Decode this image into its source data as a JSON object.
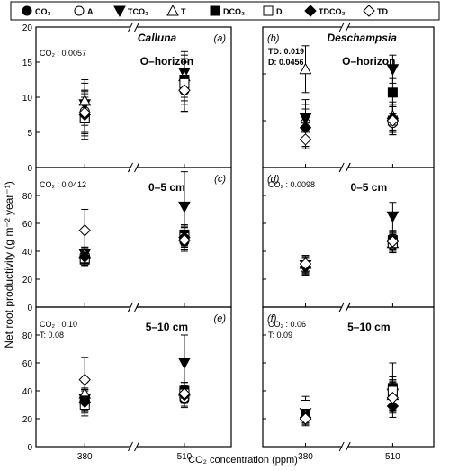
{
  "legend": [
    {
      "marker": "circle",
      "fill": "#000",
      "label": "CO₂"
    },
    {
      "marker": "circle",
      "fill": "#fff",
      "label": "A"
    },
    {
      "marker": "triangle-down",
      "fill": "#000",
      "label": "TCO₂"
    },
    {
      "marker": "triangle-up",
      "fill": "#fff",
      "label": "T"
    },
    {
      "marker": "square",
      "fill": "#000",
      "label": "DCO₂"
    },
    {
      "marker": "square",
      "fill": "#fff",
      "label": "D"
    },
    {
      "marker": "diamond",
      "fill": "#000",
      "label": "TDCO₂"
    },
    {
      "marker": "diamond",
      "fill": "#fff",
      "label": "TD"
    }
  ],
  "y_axis_label": "Net root productivity (g m⁻² year⁻¹)",
  "x_axis_label": "CO₂ concentration (ppm)",
  "chart_data": [
    {
      "type": "scatter",
      "panel_letter": "(a)",
      "title": "Calluna",
      "depth": "O–horizon",
      "stats": [
        "CO₂ : 0.0057"
      ],
      "ylim": [
        0,
        20
      ],
      "yticks": [
        0,
        5,
        10,
        15,
        20
      ],
      "categories": [
        "380",
        "510"
      ],
      "series": [
        {
          "name": "CO₂",
          "marker": "circle",
          "fill": "#000",
          "values": [
            8.0,
            11.0
          ],
          "err": [
            3.0,
            3.0
          ]
        },
        {
          "name": "A",
          "marker": "circle",
          "fill": "#fff",
          "values": [
            8.0,
            11.0
          ],
          "err": [
            3.0,
            3.0
          ]
        },
        {
          "name": "TCO₂",
          "marker": "triangle-down",
          "fill": "#000",
          "values": [
            9.0,
            13.5
          ],
          "err": [
            3.0,
            3.0
          ]
        },
        {
          "name": "T",
          "marker": "triangle-up",
          "fill": "#fff",
          "values": [
            9.5,
            13.0
          ],
          "err": [
            3.0,
            3.0
          ]
        },
        {
          "name": "DCO₂",
          "marker": "square",
          "fill": "#000",
          "values": [
            7.0,
            12.5
          ],
          "err": [
            3.0,
            3.0
          ]
        },
        {
          "name": "D",
          "marker": "square",
          "fill": "#fff",
          "values": [
            7.0,
            12.0
          ],
          "err": [
            3.0,
            3.0
          ]
        },
        {
          "name": "TDCO₂",
          "marker": "diamond",
          "fill": "#000",
          "values": [
            7.5,
            11.0
          ],
          "err": [
            3.0,
            3.0
          ]
        },
        {
          "name": "TD",
          "marker": "diamond",
          "fill": "#fff",
          "values": [
            7.8,
            11.0
          ],
          "err": [
            3.0,
            3.0
          ]
        }
      ]
    },
    {
      "type": "scatter",
      "panel_letter": "(b)",
      "title": "Deschampsia",
      "depth": "O–horizon",
      "stats": [
        "TD: 0.019",
        "D: 0.0456"
      ],
      "ylim": [
        0,
        30
      ],
      "yticks": [
        0,
        10,
        20,
        30
      ],
      "categories": [
        "380",
        "510"
      ],
      "series": [
        {
          "name": "CO₂",
          "marker": "circle",
          "fill": "#000",
          "values": [
            9.5,
            9.5
          ],
          "err": [
            4.0,
            2.0
          ]
        },
        {
          "name": "A",
          "marker": "circle",
          "fill": "#fff",
          "values": [
            9.5,
            9.5
          ],
          "err": [
            4.0,
            2.0
          ]
        },
        {
          "name": "TCO₂",
          "marker": "triangle-down",
          "fill": "#000",
          "values": [
            10.5,
            21.0
          ],
          "err": [
            4.0,
            3.0
          ]
        },
        {
          "name": "T",
          "marker": "triangle-up",
          "fill": "#fff",
          "values": [
            21.0,
            11.0
          ],
          "err": [
            5.0,
            3.0
          ]
        },
        {
          "name": "DCO₂",
          "marker": "square",
          "fill": "#000",
          "values": [
            8.5,
            16.0
          ],
          "err": [
            4.0,
            3.0
          ]
        },
        {
          "name": "D",
          "marker": "square",
          "fill": "#fff",
          "values": [
            8.5,
            10.0
          ],
          "err": [
            4.0,
            3.0
          ]
        },
        {
          "name": "TDCO₂",
          "marker": "diamond",
          "fill": "#000",
          "values": [
            8.5,
            10.5
          ],
          "err": [
            4.0,
            3.0
          ]
        },
        {
          "name": "TD",
          "marker": "diamond",
          "fill": "#fff",
          "values": [
            6.0,
            10.0
          ],
          "err": [
            2.0,
            3.0
          ]
        }
      ]
    },
    {
      "type": "scatter",
      "panel_letter": "(c)",
      "title": "",
      "depth": "0–5 cm",
      "stats": [
        "CO₂ : 0.0412"
      ],
      "ylim": [
        0,
        100
      ],
      "yticks": [
        0,
        20,
        40,
        60,
        80
      ],
      "categories": [
        "380",
        "510"
      ],
      "series": [
        {
          "name": "CO₂",
          "marker": "circle",
          "fill": "#000",
          "values": [
            36,
            47
          ],
          "err": [
            5,
            7
          ]
        },
        {
          "name": "A",
          "marker": "circle",
          "fill": "#fff",
          "values": [
            37,
            48
          ],
          "err": [
            5,
            7
          ]
        },
        {
          "name": "TCO₂",
          "marker": "triangle-down",
          "fill": "#000",
          "values": [
            38,
            72
          ],
          "err": [
            5,
            25
          ]
        },
        {
          "name": "T",
          "marker": "triangle-up",
          "fill": "#fff",
          "values": [
            38,
            51
          ],
          "err": [
            5,
            7
          ]
        },
        {
          "name": "DCO₂",
          "marker": "square",
          "fill": "#000",
          "values": [
            34,
            52
          ],
          "err": [
            5,
            7
          ]
        },
        {
          "name": "D",
          "marker": "square",
          "fill": "#fff",
          "values": [
            35,
            50
          ],
          "err": [
            5,
            7
          ]
        },
        {
          "name": "TDCO₂",
          "marker": "diamond",
          "fill": "#000",
          "values": [
            36,
            50
          ],
          "err": [
            5,
            7
          ]
        },
        {
          "name": "TD",
          "marker": "diamond",
          "fill": "#fff",
          "values": [
            55,
            48
          ],
          "err": [
            15,
            7
          ]
        }
      ]
    },
    {
      "type": "scatter",
      "panel_letter": "(d)",
      "title": "",
      "depth": "0–5 cm",
      "stats": [
        "CO₂ : 0.0098"
      ],
      "ylim": [
        0,
        100
      ],
      "yticks": [
        0,
        20,
        40,
        60,
        80
      ],
      "categories": [
        "380",
        "510"
      ],
      "series": [
        {
          "name": "CO₂",
          "marker": "circle",
          "fill": "#000",
          "values": [
            29,
            45
          ],
          "err": [
            6,
            6
          ]
        },
        {
          "name": "A",
          "marker": "circle",
          "fill": "#fff",
          "values": [
            29,
            45
          ],
          "err": [
            6,
            6
          ]
        },
        {
          "name": "TCO₂",
          "marker": "triangle-down",
          "fill": "#000",
          "values": [
            30,
            65
          ],
          "err": [
            6,
            10
          ]
        },
        {
          "name": "T",
          "marker": "triangle-up",
          "fill": "#fff",
          "values": [
            31,
            46
          ],
          "err": [
            6,
            6
          ]
        },
        {
          "name": "DCO₂",
          "marker": "square",
          "fill": "#000",
          "values": [
            30,
            48
          ],
          "err": [
            6,
            6
          ]
        },
        {
          "name": "D",
          "marker": "square",
          "fill": "#fff",
          "values": [
            29,
            46
          ],
          "err": [
            6,
            6
          ]
        },
        {
          "name": "TDCO₂",
          "marker": "diamond",
          "fill": "#000",
          "values": [
            29,
            47
          ],
          "err": [
            6,
            6
          ]
        },
        {
          "name": "TD",
          "marker": "diamond",
          "fill": "#fff",
          "values": [
            31,
            47
          ],
          "err": [
            6,
            6
          ]
        }
      ]
    },
    {
      "type": "scatter",
      "panel_letter": "(e)",
      "title": "",
      "depth": "5–10 cm",
      "stats": [
        "CO₂ : 0.10",
        "T: 0.08"
      ],
      "ylim": [
        0,
        100
      ],
      "yticks": [
        0,
        20,
        40,
        60,
        80
      ],
      "categories": [
        "380",
        "510"
      ],
      "series": [
        {
          "name": "CO₂",
          "marker": "circle",
          "fill": "#000",
          "values": [
            33,
            34
          ],
          "err": [
            8,
            6
          ]
        },
        {
          "name": "A",
          "marker": "circle",
          "fill": "#fff",
          "values": [
            33,
            35
          ],
          "err": [
            8,
            6
          ]
        },
        {
          "name": "TCO₂",
          "marker": "triangle-down",
          "fill": "#000",
          "values": [
            34,
            60
          ],
          "err": [
            8,
            20
          ]
        },
        {
          "name": "T",
          "marker": "triangle-up",
          "fill": "#fff",
          "values": [
            38,
            40
          ],
          "err": [
            8,
            6
          ]
        },
        {
          "name": "DCO₂",
          "marker": "square",
          "fill": "#000",
          "values": [
            33,
            40
          ],
          "err": [
            8,
            6
          ]
        },
        {
          "name": "D",
          "marker": "square",
          "fill": "#fff",
          "values": [
            30,
            38
          ],
          "err": [
            8,
            6
          ]
        },
        {
          "name": "TDCO₂",
          "marker": "diamond",
          "fill": "#000",
          "values": [
            32,
            37
          ],
          "err": [
            8,
            6
          ]
        },
        {
          "name": "TD",
          "marker": "diamond",
          "fill": "#fff",
          "values": [
            48,
            38
          ],
          "err": [
            16,
            6
          ]
        }
      ]
    },
    {
      "type": "scatter",
      "panel_letter": "(f)",
      "title": "",
      "depth": "5–10 cm",
      "stats": [
        "CO₂ : 0.06",
        "T: 0.09"
      ],
      "ylim": [
        0,
        100
      ],
      "yticks": [
        0,
        20,
        40,
        60,
        80
      ],
      "categories": [
        "380",
        "510"
      ],
      "series": [
        {
          "name": "CO₂",
          "marker": "circle",
          "fill": "#000",
          "values": [
            22,
            36
          ],
          "err": [
            5,
            10
          ]
        },
        {
          "name": "A",
          "marker": "circle",
          "fill": "#fff",
          "values": [
            22,
            36
          ],
          "err": [
            5,
            10
          ]
        },
        {
          "name": "TCO₂",
          "marker": "triangle-down",
          "fill": "#000",
          "values": [
            24,
            38
          ],
          "err": [
            5,
            10
          ]
        },
        {
          "name": "T",
          "marker": "triangle-up",
          "fill": "#fff",
          "values": [
            23,
            37
          ],
          "err": [
            5,
            10
          ]
        },
        {
          "name": "DCO₂",
          "marker": "square",
          "fill": "#000",
          "values": [
            22,
            42
          ],
          "err": [
            5,
            18
          ]
        },
        {
          "name": "D",
          "marker": "square",
          "fill": "#fff",
          "values": [
            30,
            40
          ],
          "err": [
            6,
            10
          ]
        },
        {
          "name": "TDCO₂",
          "marker": "diamond",
          "fill": "#000",
          "values": [
            21,
            29
          ],
          "err": [
            5,
            8
          ]
        },
        {
          "name": "TD",
          "marker": "diamond",
          "fill": "#fff",
          "values": [
            20,
            35
          ],
          "err": [
            5,
            10
          ]
        }
      ]
    }
  ]
}
